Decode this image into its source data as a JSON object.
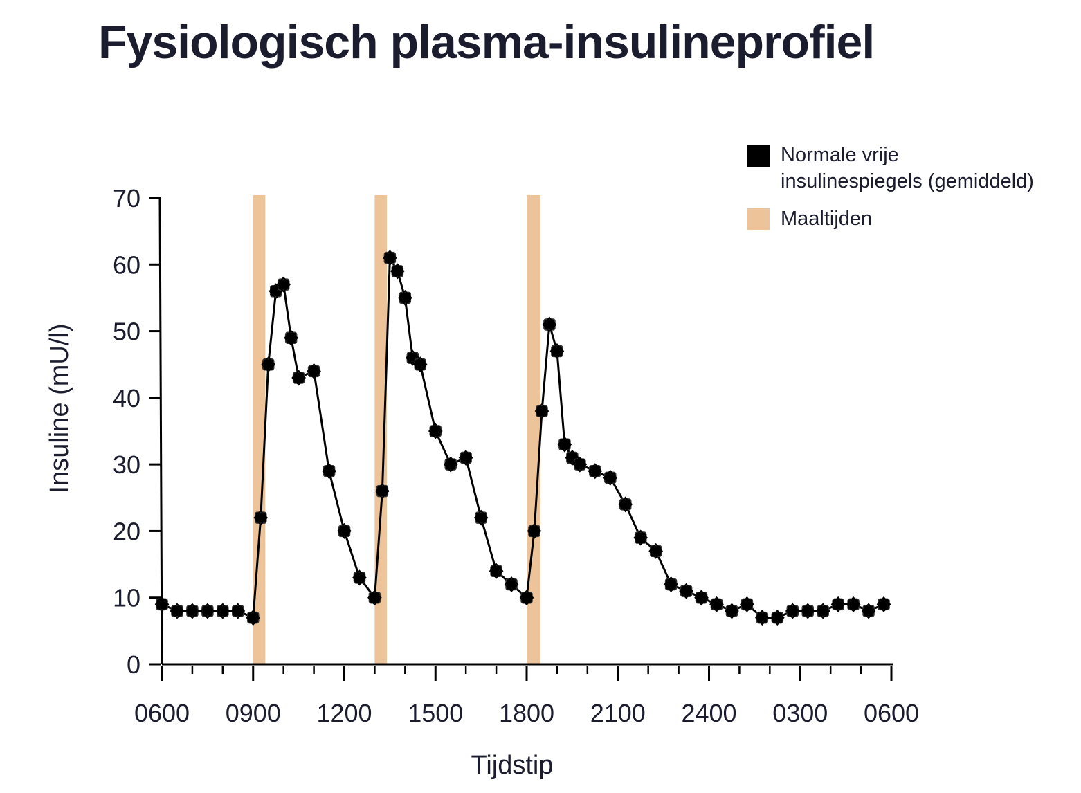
{
  "title": "Fysiologisch plasma-insulineprofiel",
  "legend": {
    "series_label_line1": "Normale vrije",
    "series_label_line2": "insulinespiegels (gemiddeld)",
    "meals_label": "Maaltijden"
  },
  "colors": {
    "series": "#000000",
    "meals": "#edc39a",
    "text": "#1b1d2e"
  },
  "chart_data": {
    "type": "line",
    "title": "Fysiologisch plasma-insulineprofiel",
    "xlabel": "Tijdstip",
    "ylabel": "Insuline (mU/l)",
    "ylim": [
      0,
      70
    ],
    "yticks": [
      0,
      10,
      20,
      30,
      40,
      50,
      60,
      70
    ],
    "x_unit": "hours after 06:00",
    "xlim": [
      0,
      24
    ],
    "xticks": [
      {
        "value": 0,
        "label": "0600"
      },
      {
        "value": 3,
        "label": "0900"
      },
      {
        "value": 6,
        "label": "1200"
      },
      {
        "value": 9,
        "label": "1500"
      },
      {
        "value": 12,
        "label": "1800"
      },
      {
        "value": 15,
        "label": "2100"
      },
      {
        "value": 18,
        "label": "2400"
      },
      {
        "value": 21,
        "label": "0300"
      },
      {
        "value": 24,
        "label": "0600"
      }
    ],
    "minor_tick_step": 1,
    "grid": false,
    "legend_position": "top-right",
    "series": [
      {
        "name": "Normale vrije insulinespiegels (gemiddeld)",
        "color": "#000000",
        "points": [
          [
            0.0,
            9
          ],
          [
            0.5,
            8
          ],
          [
            1.0,
            8
          ],
          [
            1.5,
            8
          ],
          [
            2.0,
            8
          ],
          [
            2.5,
            8
          ],
          [
            3.0,
            7
          ],
          [
            3.25,
            22
          ],
          [
            3.5,
            45
          ],
          [
            3.75,
            56
          ],
          [
            4.0,
            57
          ],
          [
            4.25,
            49
          ],
          [
            4.5,
            43
          ],
          [
            5.0,
            44
          ],
          [
            5.5,
            29
          ],
          [
            6.0,
            20
          ],
          [
            6.5,
            13
          ],
          [
            7.0,
            10
          ],
          [
            7.25,
            26
          ],
          [
            7.5,
            61
          ],
          [
            7.75,
            59
          ],
          [
            8.0,
            55
          ],
          [
            8.25,
            46
          ],
          [
            8.5,
            45
          ],
          [
            9.0,
            35
          ],
          [
            9.5,
            30
          ],
          [
            10.0,
            31
          ],
          [
            10.5,
            22
          ],
          [
            11.0,
            14
          ],
          [
            11.5,
            12
          ],
          [
            12.0,
            10
          ],
          [
            12.25,
            20
          ],
          [
            12.5,
            38
          ],
          [
            12.75,
            51
          ],
          [
            13.0,
            47
          ],
          [
            13.25,
            33
          ],
          [
            13.5,
            31
          ],
          [
            13.75,
            30
          ],
          [
            14.25,
            29
          ],
          [
            14.75,
            28
          ],
          [
            15.25,
            24
          ],
          [
            15.75,
            19
          ],
          [
            16.25,
            17
          ],
          [
            16.75,
            12
          ],
          [
            17.25,
            11
          ],
          [
            17.75,
            10
          ],
          [
            18.25,
            9
          ],
          [
            18.75,
            8
          ],
          [
            19.25,
            9
          ],
          [
            19.75,
            7
          ],
          [
            20.25,
            7
          ],
          [
            20.75,
            8
          ],
          [
            21.25,
            8
          ],
          [
            21.75,
            8
          ],
          [
            22.25,
            9
          ],
          [
            22.75,
            9
          ],
          [
            23.25,
            8
          ],
          [
            23.75,
            9
          ]
        ]
      }
    ],
    "meal_bands": [
      {
        "name": "Maaltijden",
        "x_start": 3.0,
        "x_end": 3.4
      },
      {
        "name": "Maaltijden",
        "x_start": 7.0,
        "x_end": 7.4
      },
      {
        "name": "Maaltijden",
        "x_start": 12.0,
        "x_end": 12.45
      }
    ]
  }
}
